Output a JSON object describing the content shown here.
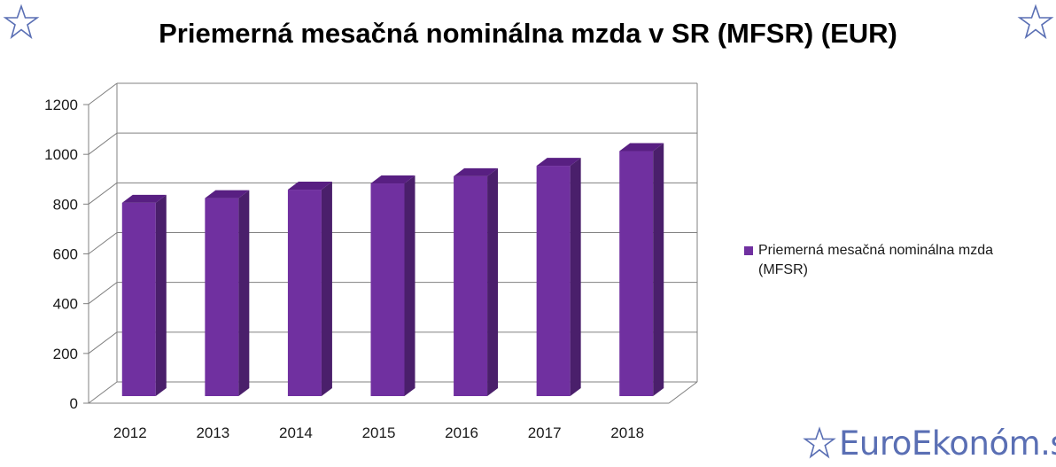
{
  "title": "Priemerná mesačná nominálna mzda v SR (MFSR) (EUR)",
  "legend": {
    "label": "Priemerná mesačná nominálna mzda (MFSR)",
    "placement": "right"
  },
  "brand": {
    "text": "EuroEkonóm.sk",
    "color": "#5a6fb4"
  },
  "icons": {
    "corner_left": "star-outline-icon",
    "corner_right": "star-outline-icon",
    "brand": "star-outline-icon"
  },
  "colors": {
    "bar_front": "#7030a0",
    "bar_side": "#4a1f6b",
    "bar_top": "#581f82",
    "grid": "#808080"
  },
  "chart_data": {
    "type": "bar",
    "title": "Priemerná mesačná nominálna mzda v SR (MFSR) (EUR)",
    "categories": [
      "2012",
      "2013",
      "2014",
      "2015",
      "2016",
      "2017",
      "2018"
    ],
    "series": [
      {
        "name": "Priemerná mesačná nominálna mzda (MFSR)",
        "values": [
          805,
          824,
          858,
          883,
          912,
          954,
          1013
        ]
      }
    ],
    "y_ticks": [
      "0",
      "200",
      "400",
      "600",
      "800",
      "1000",
      "1200"
    ],
    "ylim": [
      0,
      1200
    ],
    "grid": true,
    "legend_position": "right",
    "style": "3d-column"
  }
}
